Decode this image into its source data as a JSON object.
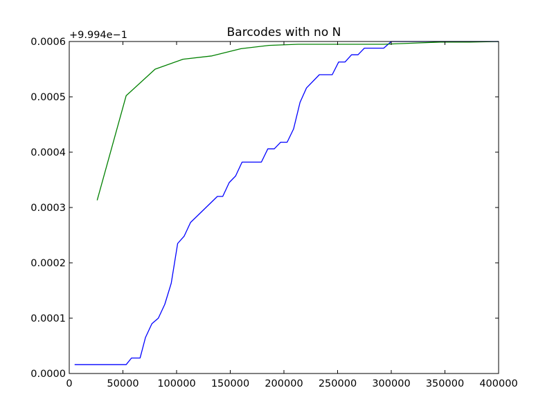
{
  "chart_data": {
    "type": "line",
    "title": "Barcodes with no N",
    "offset_label": "+9.994e−1",
    "xlabel": "",
    "ylabel": "",
    "xlim": [
      0,
      400000
    ],
    "ylim": [
      0.0,
      0.0006
    ],
    "grid": false,
    "x_ticks": [
      0,
      50000,
      100000,
      150000,
      200000,
      250000,
      300000,
      350000,
      400000
    ],
    "x_tick_labels": [
      "0",
      "50000",
      "100000",
      "150000",
      "200000",
      "250000",
      "300000",
      "350000",
      "400000"
    ],
    "y_ticks": [
      0.0,
      0.0001,
      0.0002,
      0.0003,
      0.0004,
      0.0005,
      0.0006
    ],
    "y_tick_labels": [
      "0.0000",
      "0.0001",
      "0.0002",
      "0.0003",
      "0.0004",
      "0.0005",
      "0.0006"
    ],
    "series": [
      {
        "color": "#0000ff",
        "points": [
          [
            5000,
            1.6e-05
          ],
          [
            53000,
            1.6e-05
          ],
          [
            58000,
            2.8e-05
          ],
          [
            66000,
            2.8e-05
          ],
          [
            71000,
            6.5e-05
          ],
          [
            77000,
            9e-05
          ],
          [
            83000,
            0.0001
          ],
          [
            89000,
            0.000125
          ],
          [
            95000,
            0.000163
          ],
          [
            101000,
            0.000235
          ],
          [
            107000,
            0.000248
          ],
          [
            113000,
            0.000273
          ],
          [
            138000,
            0.00032
          ],
          [
            143000,
            0.00032
          ],
          [
            149000,
            0.000345
          ],
          [
            155000,
            0.000357
          ],
          [
            161000,
            0.000382
          ],
          [
            179000,
            0.000382
          ],
          [
            185000,
            0.000406
          ],
          [
            191000,
            0.000406
          ],
          [
            197000,
            0.000418
          ],
          [
            203000,
            0.000418
          ],
          [
            209000,
            0.000442
          ],
          [
            215000,
            0.00049
          ],
          [
            221000,
            0.000516
          ],
          [
            233000,
            0.00054
          ],
          [
            245000,
            0.00054
          ],
          [
            251000,
            0.000563
          ],
          [
            257000,
            0.000563
          ],
          [
            263000,
            0.000576
          ],
          [
            269000,
            0.000576
          ],
          [
            275000,
            0.000588
          ],
          [
            293000,
            0.000588
          ],
          [
            300000,
            0.0006
          ],
          [
            400000,
            0.0006
          ]
        ]
      },
      {
        "color": "#008000",
        "points": [
          [
            26000,
            0.000313
          ],
          [
            53000,
            0.000502
          ],
          [
            80000,
            0.00055
          ],
          [
            106000,
            0.000568
          ],
          [
            133000,
            0.000574
          ],
          [
            160000,
            0.000587
          ],
          [
            186000,
            0.000593
          ],
          [
            213000,
            0.000595
          ],
          [
            240000,
            0.000595
          ],
          [
            266000,
            0.000595
          ],
          [
            293000,
            0.000595
          ],
          [
            320000,
            0.000597
          ],
          [
            346000,
            0.000599
          ],
          [
            373000,
            0.000599
          ],
          [
            400000,
            0.0006
          ]
        ]
      }
    ]
  }
}
